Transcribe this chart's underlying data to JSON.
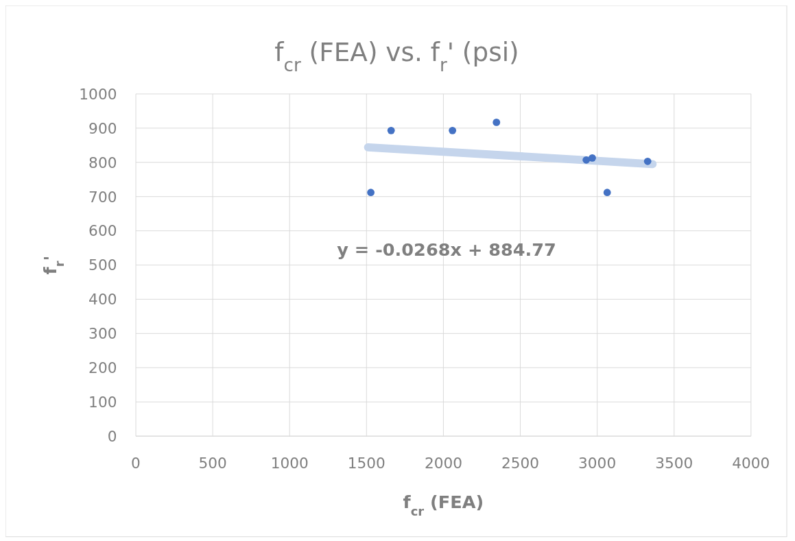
{
  "chart_data": {
    "type": "scatter",
    "title": "f$_{cr}$ (FEA) vs. f$_{r}$' (psi)",
    "xlabel": "f$_{cr}$ (FEA)",
    "ylabel": "f$_{r}$'",
    "x": [
      1528,
      1660,
      2059,
      2345,
      2929,
      2968,
      3065,
      3328
    ],
    "series": [
      {
        "color": "#4472c4",
        "marker": "circle",
        "values": [
          712,
          893,
          893,
          917,
          807,
          813,
          712,
          803
        ]
      },
      {
        "type": "line",
        "color": "#c5d5ec",
        "marker": "none",
        "x": [
          1510,
          3360
        ],
        "values": [
          844,
          795
        ]
      }
    ],
    "xlim": [
      0,
      4000
    ],
    "xticks": [
      0,
      500,
      1000,
      1500,
      2000,
      2500,
      3000,
      3500,
      4000
    ],
    "ylim": [
      0,
      1000
    ],
    "yticks": [
      0,
      100,
      200,
      300,
      400,
      500,
      600,
      700,
      800,
      900,
      1000
    ],
    "grid": true,
    "annotations": [
      "y = -0.0268x + 884.77"
    ]
  }
}
